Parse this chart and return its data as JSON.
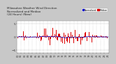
{
  "title_line1": "Milwaukee Weather Wind Direction",
  "title_line2": "Normalized and Median",
  "title_line3": "(24 Hours) (New)",
  "title_fontsize": 3.0,
  "background_color": "#c8c8c8",
  "plot_bg_color": "#ffffff",
  "grid_color": "#aaaaaa",
  "bar_color": "#dd0000",
  "median_color": "#0000cc",
  "ylim": [
    -6,
    6
  ],
  "ylabel_fontsize": 3.0,
  "xlabel_fontsize": 2.5,
  "yticks": [
    -5,
    0,
    5
  ],
  "legend_labels": [
    "Normalized",
    "Median"
  ],
  "legend_colors": [
    "#0000cc",
    "#dd0000"
  ],
  "num_points": 144,
  "seed": 42
}
